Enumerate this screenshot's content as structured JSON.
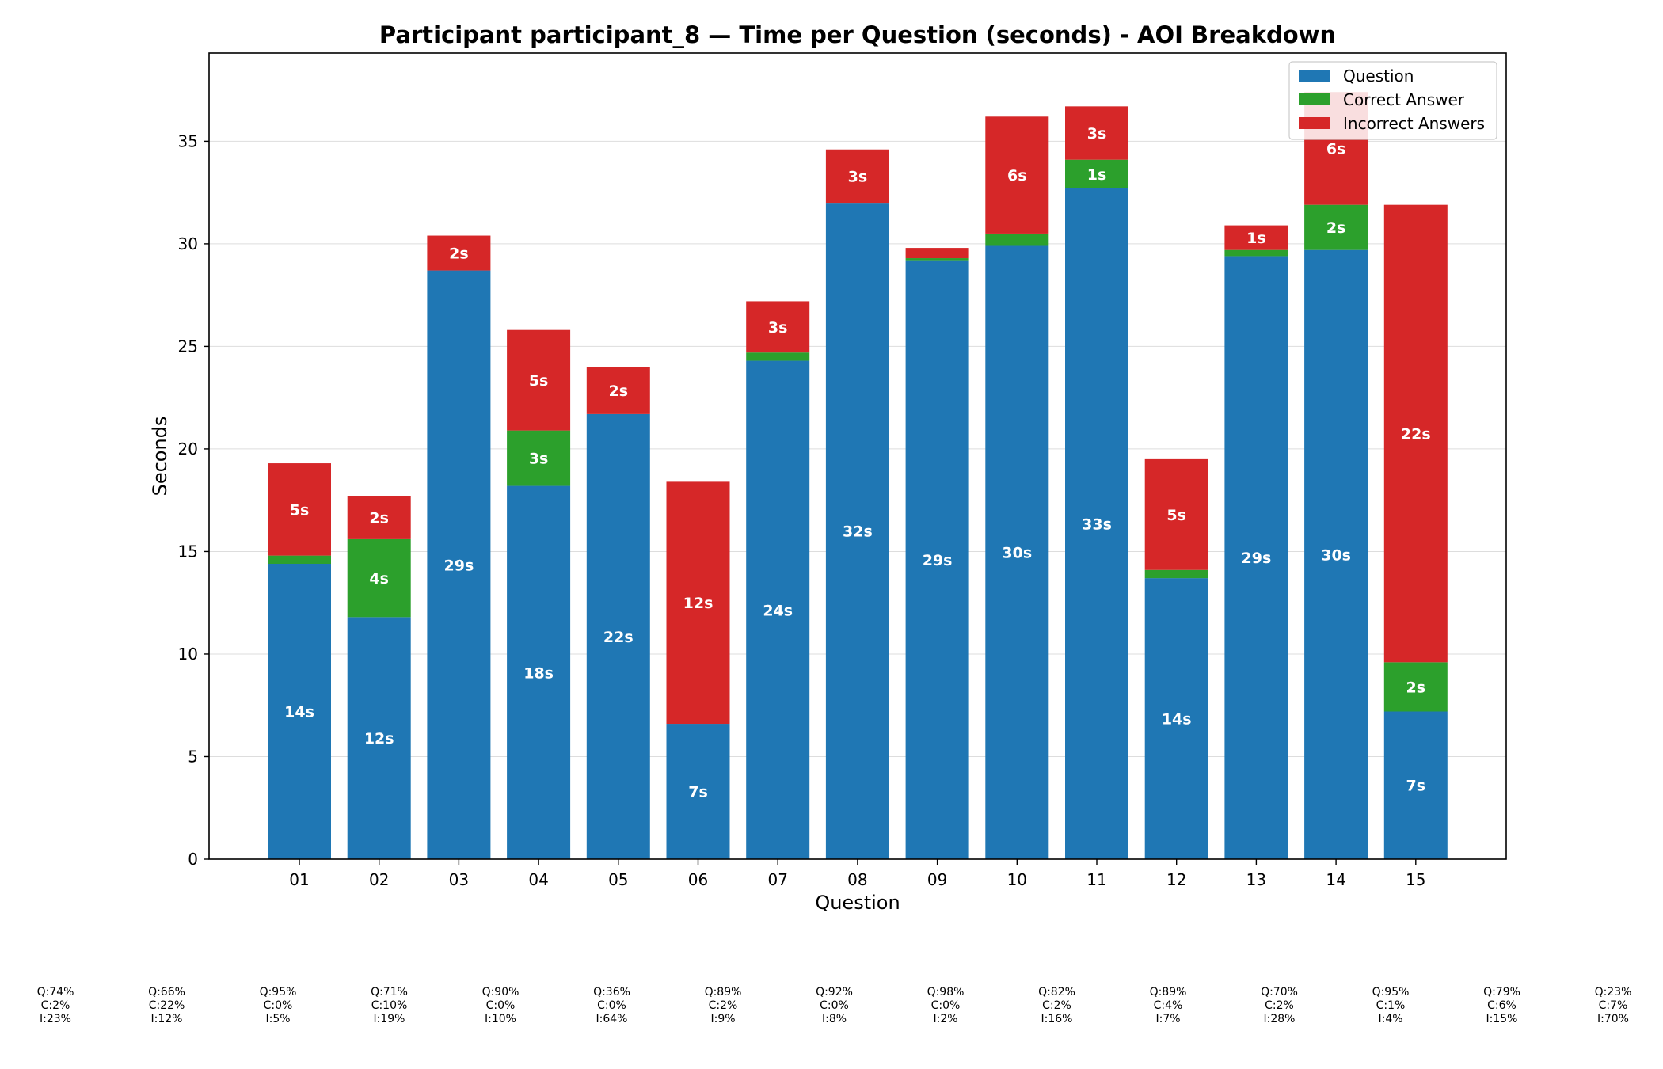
{
  "chart_data": {
    "type": "bar",
    "stacked": true,
    "title": "Participant participant_8 — Time per Question (seconds) - AOI Breakdown",
    "xlabel": "Question",
    "ylabel": "Seconds",
    "ylim": [
      0,
      39.3
    ],
    "yticks": [
      0,
      5,
      10,
      15,
      20,
      25,
      30,
      35
    ],
    "grid": "horizontal",
    "legend_position": "top-right",
    "categories": [
      "01",
      "02",
      "03",
      "04",
      "05",
      "06",
      "07",
      "08",
      "09",
      "10",
      "11",
      "12",
      "13",
      "14",
      "15"
    ],
    "series": [
      {
        "name": "Question",
        "color": "#1f77b4",
        "values": [
          14.4,
          11.8,
          28.7,
          18.2,
          21.7,
          6.6,
          24.3,
          32.0,
          29.2,
          29.9,
          32.7,
          13.7,
          29.4,
          29.7,
          7.2
        ],
        "labels": [
          "14s",
          "12s",
          "29s",
          "18s",
          "22s",
          "7s",
          "24s",
          "32s",
          "29s",
          "30s",
          "33s",
          "14s",
          "29s",
          "30s",
          "7s"
        ]
      },
      {
        "name": "Correct Answer",
        "color": "#2ca02c",
        "values": [
          0.4,
          3.8,
          0.0,
          2.7,
          0.0,
          0.0,
          0.4,
          0.0,
          0.1,
          0.6,
          1.4,
          0.4,
          0.3,
          2.2,
          2.4
        ],
        "labels": [
          "",
          "4s",
          "",
          "3s",
          "",
          "",
          "",
          "",
          "",
          "",
          "1s",
          "",
          "",
          "2s",
          "2s"
        ]
      },
      {
        "name": "Incorrect Answers",
        "color": "#d62728",
        "values": [
          4.5,
          2.1,
          1.7,
          4.9,
          2.3,
          11.8,
          2.5,
          2.6,
          0.5,
          5.7,
          2.6,
          5.4,
          1.2,
          5.5,
          22.3
        ],
        "labels": [
          "5s",
          "2s",
          "2s",
          "5s",
          "2s",
          "12s",
          "3s",
          "3s",
          "",
          "6s",
          "3s",
          "5s",
          "1s",
          "6s",
          "22s"
        ]
      }
    ],
    "percent_annotations": [
      [
        "Q:74%",
        "C:2%",
        "I:23%"
      ],
      [
        "Q:66%",
        "C:22%",
        "I:12%"
      ],
      [
        "Q:95%",
        "C:0%",
        "I:5%"
      ],
      [
        "Q:71%",
        "C:10%",
        "I:19%"
      ],
      [
        "Q:90%",
        "C:0%",
        "I:10%"
      ],
      [
        "Q:36%",
        "C:0%",
        "I:64%"
      ],
      [
        "Q:89%",
        "C:2%",
        "I:9%"
      ],
      [
        "Q:92%",
        "C:0%",
        "I:8%"
      ],
      [
        "Q:98%",
        "C:0%",
        "I:2%"
      ],
      [
        "Q:82%",
        "C:2%",
        "I:16%"
      ],
      [
        "Q:89%",
        "C:4%",
        "I:7%"
      ],
      [
        "Q:70%",
        "C:2%",
        "I:28%"
      ],
      [
        "Q:95%",
        "C:1%",
        "I:4%"
      ],
      [
        "Q:79%",
        "C:6%",
        "I:15%"
      ],
      [
        "Q:23%",
        "C:7%",
        "I:70%"
      ]
    ]
  }
}
